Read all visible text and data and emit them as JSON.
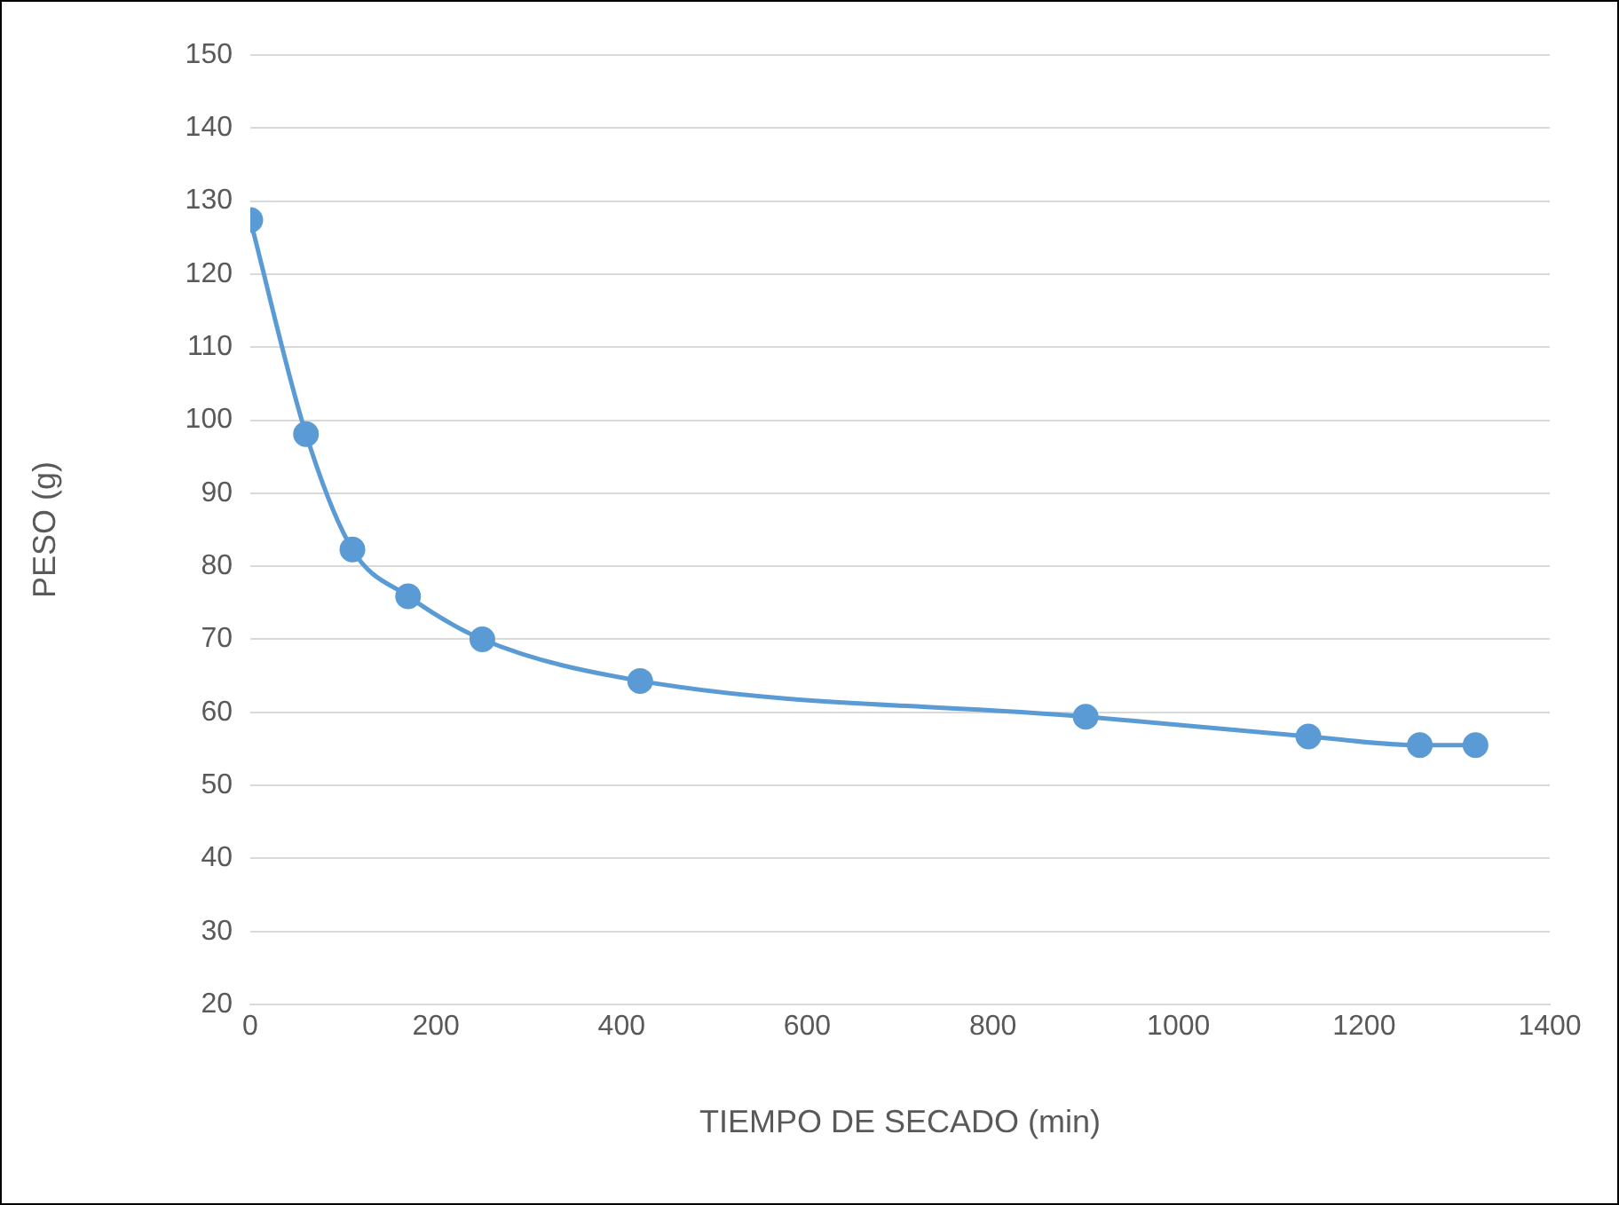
{
  "chart_data": {
    "type": "line",
    "xlabel": "TIEMPO DE SECADO (min)",
    "ylabel": "PESO (g)",
    "x": [
      0,
      60,
      110,
      170,
      250,
      420,
      900,
      1140,
      1260,
      1320
    ],
    "series": [
      {
        "color": "#5b9bd5",
        "values": [
          127.4,
          98.1,
          82.3,
          75.9,
          70,
          64.3,
          59.4,
          56.7,
          55.5,
          55.5
        ]
      }
    ],
    "xlim": [
      0,
      1400
    ],
    "xticks": [
      0,
      200,
      400,
      600,
      800,
      1000,
      1200,
      1400
    ],
    "ylim": [
      20,
      150
    ],
    "yticks": [
      20,
      30,
      40,
      50,
      60,
      70,
      80,
      90,
      100,
      110,
      120,
      130,
      140,
      150
    ],
    "grid": "y",
    "legend": false,
    "marker": "circle",
    "line_style": "solid"
  }
}
